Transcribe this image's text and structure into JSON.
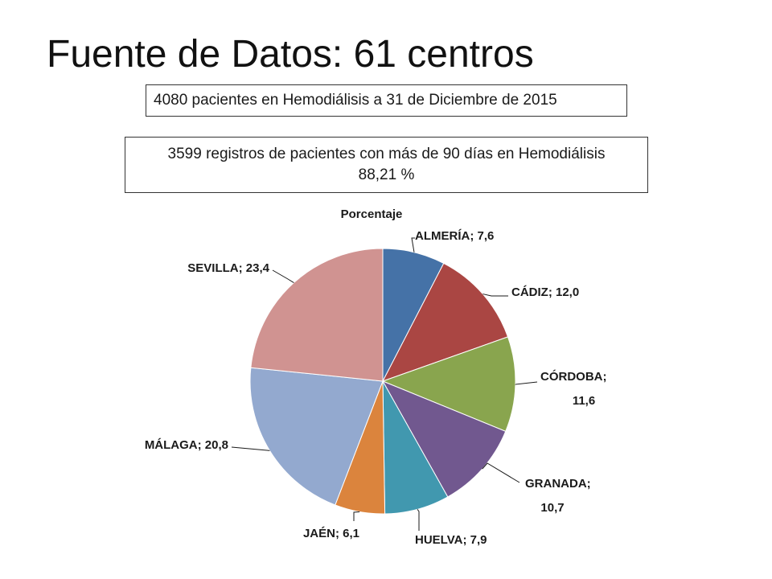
{
  "slide": {
    "title": "Fuente de Datos: 61 centros"
  },
  "info": {
    "patients_line": "4080 pacientes en Hemodiálisis a 31 de Diciembre de 2015",
    "records_line1": "3599  registros  de pacientes con más de 90 días en Hemodiálisis",
    "records_line2": "88,21 %"
  },
  "chart_data": {
    "type": "pie",
    "title": "Porcentaje",
    "categories": [
      "ALMERÍA",
      "CÁDIZ",
      "CÓRDOBA",
      "GRANADA",
      "HUELVA",
      "JAÉN",
      "MÁLAGA",
      "SEVILLA"
    ],
    "values": [
      7.6,
      12.0,
      11.6,
      10.7,
      7.9,
      6.1,
      20.8,
      23.4
    ],
    "labels": [
      [
        "ALMERÍA; 7,6"
      ],
      [
        "CÁDIZ; 12,0"
      ],
      [
        "CÓRDOBA;",
        "11,6"
      ],
      [
        "GRANADA;",
        "10,7"
      ],
      [
        "HUELVA; 7,9"
      ],
      [
        "JAÉN; 6,1"
      ],
      [
        "MÁLAGA; 20,8"
      ],
      [
        "SEVILLA; 23,4"
      ]
    ],
    "colors": [
      "#4572A7",
      "#AA4643",
      "#89A54E",
      "#71588F",
      "#4198AF",
      "#DB843D",
      "#93A9CF",
      "#D09391"
    ],
    "start_angle": "12 o'clock",
    "direction": "clockwise"
  }
}
